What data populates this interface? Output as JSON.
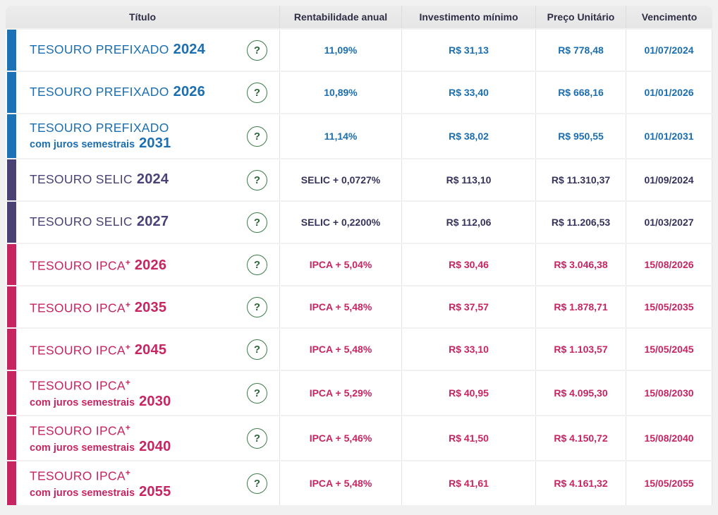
{
  "table": {
    "columns": [
      "Título",
      "Rentabilidade anual",
      "Investimento mínimo",
      "Preço Unitário",
      "Vencimento"
    ],
    "help_icon": "?",
    "categories": {
      "prefixado": {
        "bar": "#1b72b5",
        "title": "#1b6eb0",
        "value": "#1b6eb0"
      },
      "selic": {
        "bar": "#4b4175",
        "title": "#4a4177",
        "value": "#35335c"
      },
      "ipca": {
        "bar": "#c62562",
        "title": "#c62562",
        "value": "#c62562"
      }
    },
    "rows": [
      {
        "title": "TESOURO PREFIXADO",
        "plus": false,
        "subtitle": "",
        "year": "2024",
        "category": "prefixado",
        "rate": "11,09%",
        "min_investment": "R$ 31,13",
        "unit_price": "R$ 778,48",
        "maturity": "01/07/2024"
      },
      {
        "title": "TESOURO PREFIXADO",
        "plus": false,
        "subtitle": "",
        "year": "2026",
        "category": "prefixado",
        "rate": "10,89%",
        "min_investment": "R$ 33,40",
        "unit_price": "R$ 668,16",
        "maturity": "01/01/2026"
      },
      {
        "title": "TESOURO PREFIXADO",
        "plus": false,
        "subtitle": "com juros semestrais",
        "year": "2031",
        "category": "prefixado",
        "rate": "11,14%",
        "min_investment": "R$ 38,02",
        "unit_price": "R$ 950,55",
        "maturity": "01/01/2031"
      },
      {
        "title": "TESOURO SELIC",
        "plus": false,
        "subtitle": "",
        "year": "2024",
        "category": "selic",
        "rate": "SELIC + 0,0727%",
        "min_investment": "R$ 113,10",
        "unit_price": "R$ 11.310,37",
        "maturity": "01/09/2024"
      },
      {
        "title": "TESOURO SELIC",
        "plus": false,
        "subtitle": "",
        "year": "2027",
        "category": "selic",
        "rate": "SELIC + 0,2200%",
        "min_investment": "R$ 112,06",
        "unit_price": "R$ 11.206,53",
        "maturity": "01/03/2027"
      },
      {
        "title": "TESOURO IPCA",
        "plus": true,
        "subtitle": "",
        "year": "2026",
        "category": "ipca",
        "rate": "IPCA + 5,04%",
        "min_investment": "R$ 30,46",
        "unit_price": "R$ 3.046,38",
        "maturity": "15/08/2026"
      },
      {
        "title": "TESOURO IPCA",
        "plus": true,
        "subtitle": "",
        "year": "2035",
        "category": "ipca",
        "rate": "IPCA + 5,48%",
        "min_investment": "R$ 37,57",
        "unit_price": "R$ 1.878,71",
        "maturity": "15/05/2035"
      },
      {
        "title": "TESOURO IPCA",
        "plus": true,
        "subtitle": "",
        "year": "2045",
        "category": "ipca",
        "rate": "IPCA + 5,48%",
        "min_investment": "R$ 33,10",
        "unit_price": "R$ 1.103,57",
        "maturity": "15/05/2045"
      },
      {
        "title": "TESOURO IPCA",
        "plus": true,
        "subtitle": "com juros semestrais",
        "year": "2030",
        "category": "ipca",
        "rate": "IPCA + 5,29%",
        "min_investment": "R$ 40,95",
        "unit_price": "R$ 4.095,30",
        "maturity": "15/08/2030"
      },
      {
        "title": "TESOURO IPCA",
        "plus": true,
        "subtitle": "com juros semestrais",
        "year": "2040",
        "category": "ipca",
        "rate": "IPCA + 5,46%",
        "min_investment": "R$ 41,50",
        "unit_price": "R$ 4.150,72",
        "maturity": "15/08/2040"
      },
      {
        "title": "TESOURO IPCA",
        "plus": true,
        "subtitle": "com juros semestrais",
        "year": "2055",
        "category": "ipca",
        "rate": "IPCA + 5,48%",
        "min_investment": "R$ 41,61",
        "unit_price": "R$ 4.161,32",
        "maturity": "15/05/2055"
      }
    ]
  }
}
